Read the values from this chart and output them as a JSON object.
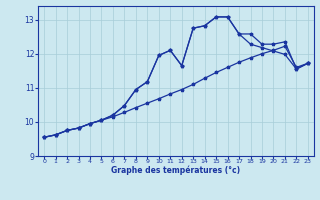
{
  "title": "Graphe des températures (°c)",
  "background_color": "#cce8f0",
  "grid_color": "#a8cdd8",
  "line_color": "#1a35a0",
  "xlim": [
    -0.5,
    23.5
  ],
  "ylim": [
    9.0,
    13.4
  ],
  "yticks": [
    9,
    10,
    11,
    12,
    13
  ],
  "xticks": [
    0,
    1,
    2,
    3,
    4,
    5,
    6,
    7,
    8,
    9,
    10,
    11,
    12,
    13,
    14,
    15,
    16,
    17,
    18,
    19,
    20,
    21,
    22,
    23
  ],
  "line1_x": [
    0,
    1,
    2,
    3,
    4,
    5,
    6,
    7,
    8,
    9,
    10,
    11,
    12,
    13,
    14,
    15,
    16,
    17,
    18,
    19,
    20,
    21,
    22,
    23
  ],
  "line1_y": [
    9.55,
    9.62,
    9.75,
    9.82,
    9.95,
    10.05,
    10.15,
    10.28,
    10.42,
    10.55,
    10.68,
    10.82,
    10.95,
    11.1,
    11.28,
    11.45,
    11.6,
    11.75,
    11.88,
    12.0,
    12.1,
    12.22,
    11.6,
    11.72
  ],
  "line2_x": [
    0,
    1,
    2,
    3,
    4,
    5,
    6,
    7,
    8,
    9,
    10,
    11,
    12,
    13,
    14,
    15,
    16,
    17,
    18,
    19,
    20,
    21,
    22,
    23
  ],
  "line2_y": [
    9.55,
    9.62,
    9.75,
    9.82,
    9.95,
    10.05,
    10.2,
    10.48,
    10.95,
    11.18,
    11.95,
    12.1,
    11.65,
    12.75,
    12.82,
    13.08,
    13.08,
    12.58,
    12.28,
    12.18,
    12.08,
    11.98,
    11.55,
    11.72
  ],
  "line3_x": [
    0,
    1,
    2,
    3,
    4,
    5,
    6,
    7,
    8,
    9,
    10,
    11,
    12,
    13,
    14,
    15,
    16,
    17,
    18,
    19,
    20,
    21,
    22,
    23
  ],
  "line3_y": [
    9.55,
    9.62,
    9.75,
    9.82,
    9.95,
    10.05,
    10.2,
    10.48,
    10.95,
    11.18,
    11.95,
    12.1,
    11.65,
    12.75,
    12.82,
    13.08,
    13.08,
    12.58,
    12.58,
    12.28,
    12.28,
    12.35,
    11.55,
    11.72
  ]
}
